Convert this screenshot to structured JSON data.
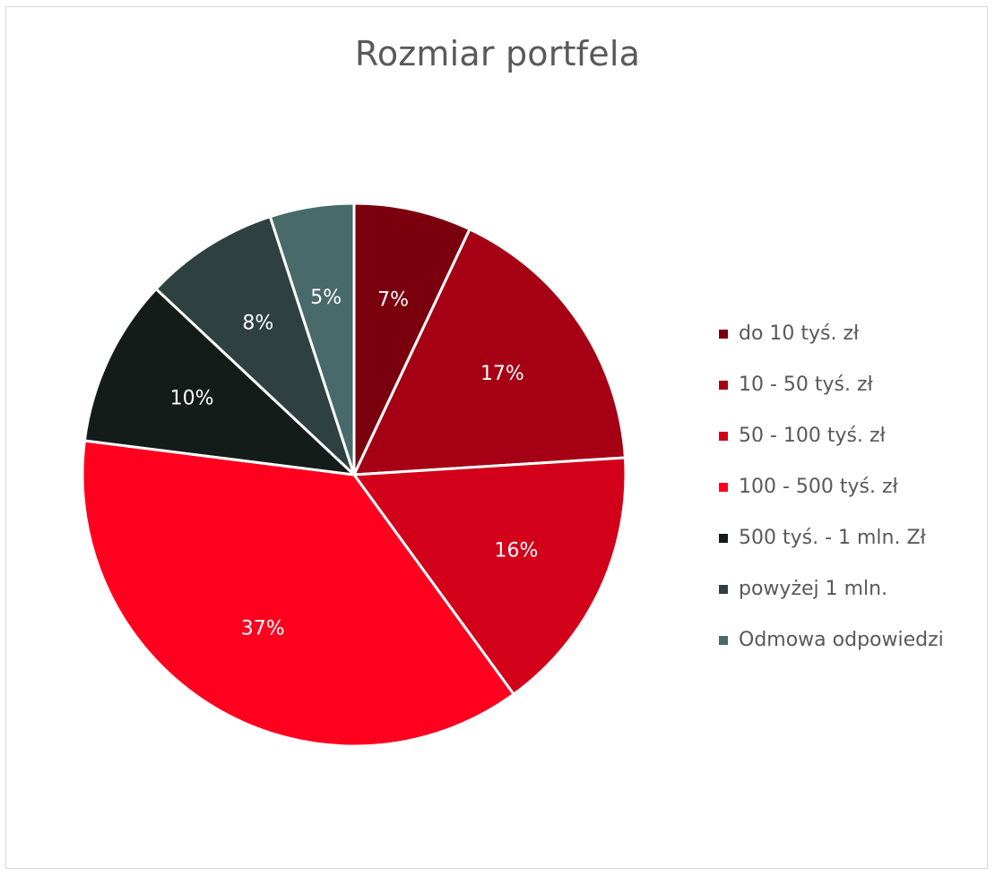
{
  "chart_data": {
    "type": "pie",
    "title": "Rozmiar portfela",
    "categories": [
      "do 10 tyś. zł",
      "10 - 50 tyś. zł",
      "50 - 100 tyś. zł",
      "100 - 500 tyś. zł",
      "500 tyś. - 1 mln. Zł",
      "powyżej 1 mln.",
      "Odmowa odpowiedzi"
    ],
    "values": [
      7,
      17,
      16,
      37,
      10,
      8,
      5
    ],
    "value_labels": [
      "7%",
      "17%",
      "16%",
      "37%",
      "10%",
      "8%",
      "5%"
    ],
    "colors": [
      "#7B000E",
      "#A50014",
      "#D20019",
      "#FF001F",
      "#141C1A",
      "#2E4140",
      "#486A6A"
    ],
    "start_angle_deg": 0,
    "direction": "clockwise",
    "legend_position": "right"
  }
}
